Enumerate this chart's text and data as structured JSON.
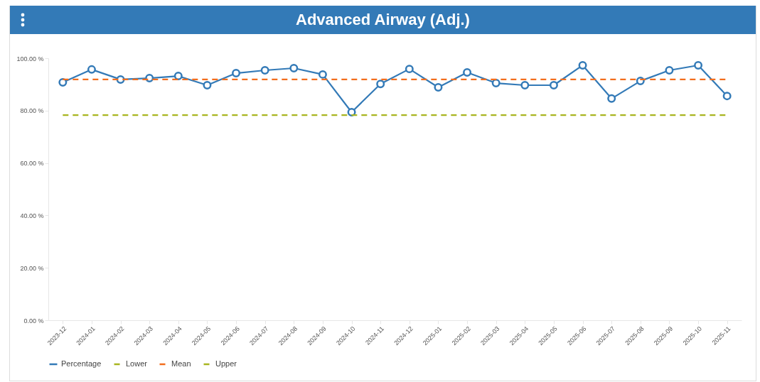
{
  "chart_data": {
    "type": "line",
    "title": "Advanced Airway (Adj.)",
    "categories": [
      "2023-12",
      "2024-01",
      "2024-02",
      "2024-03",
      "2024-04",
      "2024-05",
      "2024-06",
      "2024-07",
      "2024-08",
      "2024-09",
      "2024-10",
      "2024-11",
      "2024-12",
      "2025-01",
      "2025-02",
      "2025-03",
      "2025-04",
      "2025-05",
      "2025-06",
      "2025-07",
      "2025-08",
      "2025-09",
      "2025-10",
      "2025-11"
    ],
    "series": [
      {
        "name": "Percentage",
        "color": "#337ab7",
        "marker": "circle",
        "line_style": "solid",
        "values": [
          90.8,
          95.7,
          91.9,
          92.4,
          93.2,
          89.7,
          94.3,
          95.4,
          96.2,
          93.8,
          79.4,
          90.2,
          95.9,
          88.9,
          94.6,
          90.5,
          89.7,
          89.7,
          97.3,
          84.6,
          91.3,
          95.4,
          97.3,
          85.6
        ]
      },
      {
        "name": "Lower",
        "color": "#a8b51f",
        "marker": "none",
        "line_style": "dashed",
        "values": [
          78.3,
          78.3,
          78.3,
          78.3,
          78.3,
          78.3,
          78.3,
          78.3,
          78.3,
          78.3,
          78.3,
          78.3,
          78.3,
          78.3,
          78.3,
          78.3,
          78.3,
          78.3,
          78.3,
          78.3,
          78.3,
          78.3,
          78.3,
          78.3
        ]
      },
      {
        "name": "Mean",
        "color": "#f26d1d",
        "marker": "none",
        "line_style": "dashed",
        "values": [
          91.9,
          91.9,
          91.9,
          91.9,
          91.9,
          91.9,
          91.9,
          91.9,
          91.9,
          91.9,
          91.9,
          91.9,
          91.9,
          91.9,
          91.9,
          91.9,
          91.9,
          91.9,
          91.9,
          91.9,
          91.9,
          91.9,
          91.9,
          91.9
        ]
      },
      {
        "name": "Upper",
        "color": "#a8b51f",
        "marker": "none",
        "line_style": "dashed",
        "values": [
          null,
          null,
          null,
          null,
          null,
          null,
          null,
          null,
          null,
          null,
          null,
          null,
          null,
          null,
          null,
          null,
          null,
          null,
          null,
          null,
          null,
          null,
          null,
          null
        ]
      }
    ],
    "ylim": [
      0,
      100
    ],
    "yticks": [
      {
        "value": 0,
        "label": "0.00 %"
      },
      {
        "value": 20,
        "label": "20.00 %"
      },
      {
        "value": 40,
        "label": "40.00 %"
      },
      {
        "value": 60,
        "label": "60.00 %"
      },
      {
        "value": 80,
        "label": "80.00 %"
      },
      {
        "value": 100,
        "label": "100.00 %"
      }
    ],
    "grid": false,
    "legend": "bottom"
  }
}
